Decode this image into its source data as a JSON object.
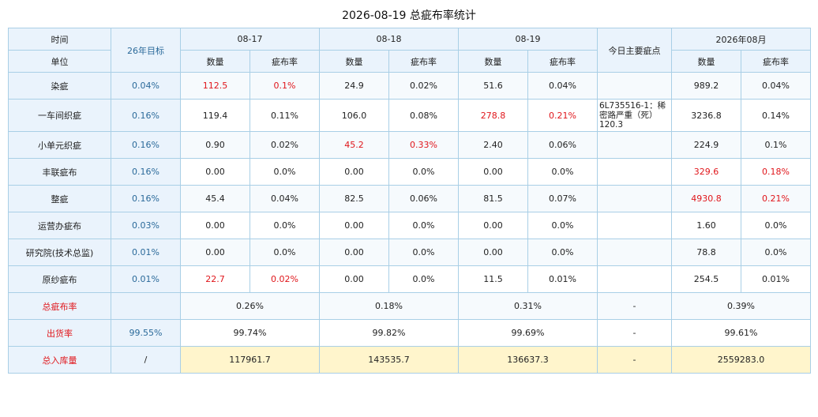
{
  "title": "2026-08-19 总疵布率统计",
  "header": {
    "time": "时间",
    "unit": "单位",
    "target": "26年目标",
    "dates": [
      "08-17",
      "08-18",
      "08-19"
    ],
    "main_defects": "今日主要疵点",
    "month": "2026年08月",
    "qty": "数量",
    "rate": "疵布率"
  },
  "rows": [
    {
      "unit": "染疵",
      "target": "0.04%",
      "d1q": "112.5",
      "d1r": "0.1%",
      "d2q": "24.9",
      "d2r": "0.02%",
      "d3q": "51.6",
      "d3r": "0.04%",
      "note": "",
      "mq": "989.2",
      "mr": "0.04%"
    },
    {
      "unit": "一车间织疵",
      "target": "0.16%",
      "d1q": "119.4",
      "d1r": "0.11%",
      "d2q": "106.0",
      "d2r": "0.08%",
      "d3q": "278.8",
      "d3r": "0.21%",
      "note": "6L735516-1：稀密路严重（死）120.3",
      "mq": "3236.8",
      "mr": "0.14%"
    },
    {
      "unit": "小单元织疵",
      "target": "0.16%",
      "d1q": "0.90",
      "d1r": "0.02%",
      "d2q": "45.2",
      "d2r": "0.33%",
      "d3q": "2.40",
      "d3r": "0.06%",
      "note": "",
      "mq": "224.9",
      "mr": "0.1%"
    },
    {
      "unit": "丰联疵布",
      "target": "0.16%",
      "d1q": "0.00",
      "d1r": "0.0%",
      "d2q": "0.00",
      "d2r": "0.0%",
      "d3q": "0.00",
      "d3r": "0.0%",
      "note": "",
      "mq": "329.6",
      "mr": "0.18%"
    },
    {
      "unit": "整疵",
      "target": "0.16%",
      "d1q": "45.4",
      "d1r": "0.04%",
      "d2q": "82.5",
      "d2r": "0.06%",
      "d3q": "81.5",
      "d3r": "0.07%",
      "note": "",
      "mq": "4930.8",
      "mr": "0.21%"
    },
    {
      "unit": "运营办疵布",
      "target": "0.03%",
      "d1q": "0.00",
      "d1r": "0.0%",
      "d2q": "0.00",
      "d2r": "0.0%",
      "d3q": "0.00",
      "d3r": "0.0%",
      "note": "",
      "mq": "1.60",
      "mr": "0.0%"
    },
    {
      "unit": "研究院(技术总监)",
      "target": "0.01%",
      "d1q": "0.00",
      "d1r": "0.0%",
      "d2q": "0.00",
      "d2r": "0.0%",
      "d3q": "0.00",
      "d3r": "0.0%",
      "note": "",
      "mq": "78.8",
      "mr": "0.0%"
    },
    {
      "unit": "原纱疵布",
      "target": "0.01%",
      "d1q": "22.7",
      "d1r": "0.02%",
      "d2q": "0.00",
      "d2r": "0.0%",
      "d3q": "11.5",
      "d3r": "0.01%",
      "note": "",
      "mq": "254.5",
      "mr": "0.01%"
    }
  ],
  "totals": {
    "total_rate": {
      "label": "总疵布率",
      "target": "",
      "d1": "0.26%",
      "d2": "0.18%",
      "d3": "0.31%",
      "note": "-",
      "month": "0.39%"
    },
    "shipment": {
      "label": "出货率",
      "target": "99.55%",
      "d1": "99.74%",
      "d2": "99.82%",
      "d3": "99.69%",
      "note": "-",
      "month": "99.61%"
    },
    "stock_in": {
      "label": "总入库量",
      "target": "/",
      "d1": "117961.7",
      "d2": "143535.7",
      "d3": "136637.3",
      "note": "-",
      "month": "2559283.0"
    }
  },
  "colors": {
    "highlight": "#e0161b",
    "header_bg": "#eaf3fc",
    "border": "#a9cfe6",
    "stock_bg": "#fff5cc"
  }
}
